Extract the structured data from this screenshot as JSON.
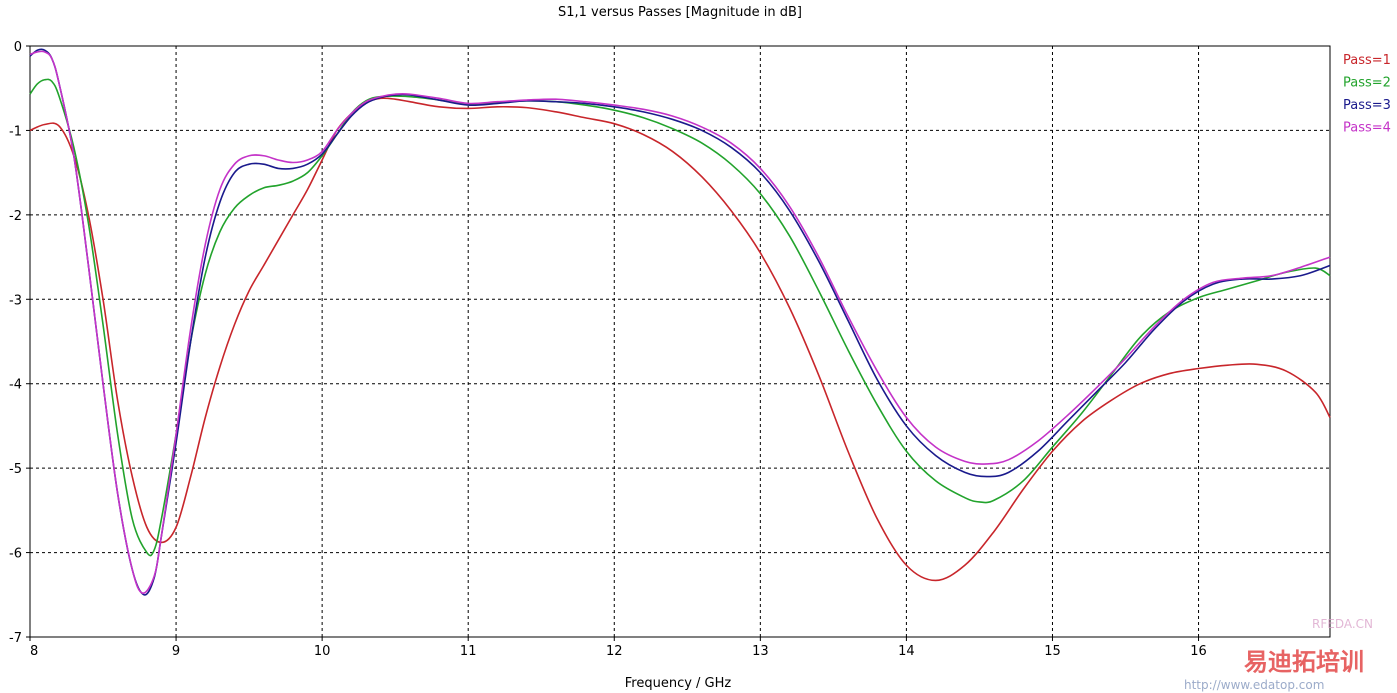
{
  "chart_data": {
    "type": "line",
    "title": "S1,1 versus Passes [Magnitude in dB]",
    "xlabel": "Frequency / GHz",
    "ylabel": "",
    "xlim": [
      8,
      16.9
    ],
    "ylim": [
      -7,
      0
    ],
    "xticks": [
      "8",
      "9",
      "10",
      "11",
      "12",
      "13",
      "14",
      "15",
      "16"
    ],
    "yticks": [
      "0",
      "-1",
      "-2",
      "-3",
      "-4",
      "-5",
      "-6",
      "-7"
    ],
    "grid": true,
    "legend": "top-right",
    "series": [
      {
        "name": "Pass=1",
        "color": "#c8262b",
        "points": [
          [
            8.0,
            -1.0
          ],
          [
            8.1,
            -0.93
          ],
          [
            8.2,
            -0.95
          ],
          [
            8.3,
            -1.3
          ],
          [
            8.4,
            -2.0
          ],
          [
            8.5,
            -3.0
          ],
          [
            8.6,
            -4.2
          ],
          [
            8.7,
            -5.1
          ],
          [
            8.8,
            -5.7
          ],
          [
            8.9,
            -5.88
          ],
          [
            9.0,
            -5.7
          ],
          [
            9.1,
            -5.1
          ],
          [
            9.2,
            -4.4
          ],
          [
            9.3,
            -3.8
          ],
          [
            9.4,
            -3.3
          ],
          [
            9.5,
            -2.9
          ],
          [
            9.6,
            -2.6
          ],
          [
            9.7,
            -2.3
          ],
          [
            9.8,
            -2.0
          ],
          [
            9.9,
            -1.7
          ],
          [
            10.0,
            -1.35
          ],
          [
            10.1,
            -1.0
          ],
          [
            10.2,
            -0.8
          ],
          [
            10.3,
            -0.67
          ],
          [
            10.4,
            -0.62
          ],
          [
            10.5,
            -0.63
          ],
          [
            10.6,
            -0.66
          ],
          [
            10.8,
            -0.72
          ],
          [
            11.0,
            -0.74
          ],
          [
            11.2,
            -0.72
          ],
          [
            11.4,
            -0.73
          ],
          [
            11.6,
            -0.78
          ],
          [
            11.8,
            -0.85
          ],
          [
            12.0,
            -0.92
          ],
          [
            12.2,
            -1.05
          ],
          [
            12.4,
            -1.25
          ],
          [
            12.6,
            -1.55
          ],
          [
            12.8,
            -1.95
          ],
          [
            13.0,
            -2.45
          ],
          [
            13.2,
            -3.1
          ],
          [
            13.4,
            -3.9
          ],
          [
            13.6,
            -4.8
          ],
          [
            13.8,
            -5.6
          ],
          [
            14.0,
            -6.15
          ],
          [
            14.2,
            -6.33
          ],
          [
            14.4,
            -6.15
          ],
          [
            14.6,
            -5.75
          ],
          [
            14.8,
            -5.25
          ],
          [
            15.0,
            -4.8
          ],
          [
            15.2,
            -4.45
          ],
          [
            15.4,
            -4.2
          ],
          [
            15.6,
            -4.0
          ],
          [
            15.8,
            -3.88
          ],
          [
            16.0,
            -3.82
          ],
          [
            16.2,
            -3.78
          ],
          [
            16.4,
            -3.77
          ],
          [
            16.6,
            -3.85
          ],
          [
            16.8,
            -4.1
          ],
          [
            16.9,
            -4.4
          ]
        ]
      },
      {
        "name": "Pass=2",
        "color": "#22a32c",
        "points": [
          [
            8.0,
            -0.57
          ],
          [
            8.05,
            -0.45
          ],
          [
            8.1,
            -0.4
          ],
          [
            8.15,
            -0.42
          ],
          [
            8.2,
            -0.6
          ],
          [
            8.3,
            -1.2
          ],
          [
            8.4,
            -2.1
          ],
          [
            8.5,
            -3.3
          ],
          [
            8.6,
            -4.6
          ],
          [
            8.7,
            -5.6
          ],
          [
            8.8,
            -6.0
          ],
          [
            8.85,
            -5.97
          ],
          [
            8.9,
            -5.6
          ],
          [
            9.0,
            -4.6
          ],
          [
            9.1,
            -3.5
          ],
          [
            9.2,
            -2.7
          ],
          [
            9.3,
            -2.2
          ],
          [
            9.4,
            -1.92
          ],
          [
            9.5,
            -1.77
          ],
          [
            9.6,
            -1.68
          ],
          [
            9.7,
            -1.65
          ],
          [
            9.8,
            -1.6
          ],
          [
            9.9,
            -1.5
          ],
          [
            10.0,
            -1.3
          ],
          [
            10.1,
            -1.05
          ],
          [
            10.2,
            -0.8
          ],
          [
            10.3,
            -0.65
          ],
          [
            10.4,
            -0.6
          ],
          [
            10.6,
            -0.6
          ],
          [
            10.8,
            -0.64
          ],
          [
            11.0,
            -0.69
          ],
          [
            11.2,
            -0.67
          ],
          [
            11.4,
            -0.65
          ],
          [
            11.6,
            -0.66
          ],
          [
            11.8,
            -0.7
          ],
          [
            12.0,
            -0.76
          ],
          [
            12.2,
            -0.85
          ],
          [
            12.4,
            -0.98
          ],
          [
            12.6,
            -1.15
          ],
          [
            12.8,
            -1.4
          ],
          [
            13.0,
            -1.75
          ],
          [
            13.2,
            -2.25
          ],
          [
            13.4,
            -2.9
          ],
          [
            13.6,
            -3.6
          ],
          [
            13.8,
            -4.25
          ],
          [
            14.0,
            -4.8
          ],
          [
            14.2,
            -5.15
          ],
          [
            14.4,
            -5.35
          ],
          [
            14.5,
            -5.4
          ],
          [
            14.6,
            -5.38
          ],
          [
            14.8,
            -5.15
          ],
          [
            15.0,
            -4.75
          ],
          [
            15.2,
            -4.35
          ],
          [
            15.4,
            -3.9
          ],
          [
            15.6,
            -3.45
          ],
          [
            15.8,
            -3.15
          ],
          [
            16.0,
            -2.98
          ],
          [
            16.2,
            -2.88
          ],
          [
            16.4,
            -2.78
          ],
          [
            16.6,
            -2.68
          ],
          [
            16.8,
            -2.63
          ],
          [
            16.9,
            -2.72
          ]
        ]
      },
      {
        "name": "Pass=3",
        "color": "#1a1a8c",
        "points": [
          [
            8.0,
            -0.12
          ],
          [
            8.05,
            -0.05
          ],
          [
            8.1,
            -0.05
          ],
          [
            8.15,
            -0.15
          ],
          [
            8.2,
            -0.45
          ],
          [
            8.3,
            -1.3
          ],
          [
            8.4,
            -2.6
          ],
          [
            8.5,
            -4.0
          ],
          [
            8.6,
            -5.3
          ],
          [
            8.7,
            -6.2
          ],
          [
            8.78,
            -6.5
          ],
          [
            8.85,
            -6.3
          ],
          [
            8.9,
            -5.8
          ],
          [
            9.0,
            -4.7
          ],
          [
            9.1,
            -3.5
          ],
          [
            9.2,
            -2.5
          ],
          [
            9.3,
            -1.85
          ],
          [
            9.4,
            -1.5
          ],
          [
            9.5,
            -1.4
          ],
          [
            9.6,
            -1.4
          ],
          [
            9.7,
            -1.45
          ],
          [
            9.8,
            -1.45
          ],
          [
            9.9,
            -1.4
          ],
          [
            10.0,
            -1.28
          ],
          [
            10.1,
            -1.05
          ],
          [
            10.2,
            -0.83
          ],
          [
            10.3,
            -0.68
          ],
          [
            10.4,
            -0.61
          ],
          [
            10.5,
            -0.58
          ],
          [
            10.6,
            -0.58
          ],
          [
            10.8,
            -0.64
          ],
          [
            11.0,
            -0.7
          ],
          [
            11.2,
            -0.68
          ],
          [
            11.4,
            -0.65
          ],
          [
            11.6,
            -0.66
          ],
          [
            11.8,
            -0.68
          ],
          [
            12.0,
            -0.72
          ],
          [
            12.2,
            -0.78
          ],
          [
            12.4,
            -0.87
          ],
          [
            12.6,
            -1.0
          ],
          [
            12.8,
            -1.2
          ],
          [
            13.0,
            -1.5
          ],
          [
            13.2,
            -1.95
          ],
          [
            13.4,
            -2.55
          ],
          [
            13.6,
            -3.25
          ],
          [
            13.8,
            -3.95
          ],
          [
            14.0,
            -4.5
          ],
          [
            14.2,
            -4.85
          ],
          [
            14.4,
            -5.05
          ],
          [
            14.55,
            -5.1
          ],
          [
            14.7,
            -5.05
          ],
          [
            14.9,
            -4.8
          ],
          [
            15.1,
            -4.45
          ],
          [
            15.3,
            -4.1
          ],
          [
            15.5,
            -3.75
          ],
          [
            15.7,
            -3.35
          ],
          [
            15.9,
            -3.02
          ],
          [
            16.1,
            -2.82
          ],
          [
            16.3,
            -2.76
          ],
          [
            16.5,
            -2.76
          ],
          [
            16.7,
            -2.72
          ],
          [
            16.9,
            -2.6
          ]
        ]
      },
      {
        "name": "Pass=4",
        "color": "#c433c8",
        "points": [
          [
            8.0,
            -0.1
          ],
          [
            8.05,
            -0.07
          ],
          [
            8.1,
            -0.07
          ],
          [
            8.15,
            -0.15
          ],
          [
            8.2,
            -0.45
          ],
          [
            8.3,
            -1.3
          ],
          [
            8.4,
            -2.6
          ],
          [
            8.5,
            -4.0
          ],
          [
            8.6,
            -5.3
          ],
          [
            8.7,
            -6.2
          ],
          [
            8.77,
            -6.48
          ],
          [
            8.85,
            -6.28
          ],
          [
            8.9,
            -5.8
          ],
          [
            9.0,
            -4.6
          ],
          [
            9.1,
            -3.35
          ],
          [
            9.2,
            -2.35
          ],
          [
            9.3,
            -1.7
          ],
          [
            9.4,
            -1.4
          ],
          [
            9.5,
            -1.3
          ],
          [
            9.6,
            -1.3
          ],
          [
            9.7,
            -1.35
          ],
          [
            9.8,
            -1.38
          ],
          [
            9.9,
            -1.35
          ],
          [
            10.0,
            -1.25
          ],
          [
            10.1,
            -1.0
          ],
          [
            10.2,
            -0.8
          ],
          [
            10.3,
            -0.66
          ],
          [
            10.4,
            -0.6
          ],
          [
            10.5,
            -0.57
          ],
          [
            10.6,
            -0.57
          ],
          [
            10.8,
            -0.62
          ],
          [
            11.0,
            -0.68
          ],
          [
            11.2,
            -0.66
          ],
          [
            11.4,
            -0.64
          ],
          [
            11.6,
            -0.63
          ],
          [
            11.8,
            -0.66
          ],
          [
            12.0,
            -0.7
          ],
          [
            12.2,
            -0.75
          ],
          [
            12.4,
            -0.83
          ],
          [
            12.6,
            -0.96
          ],
          [
            12.8,
            -1.15
          ],
          [
            13.0,
            -1.45
          ],
          [
            13.2,
            -1.9
          ],
          [
            13.4,
            -2.5
          ],
          [
            13.6,
            -3.2
          ],
          [
            13.8,
            -3.85
          ],
          [
            14.0,
            -4.4
          ],
          [
            14.2,
            -4.75
          ],
          [
            14.4,
            -4.92
          ],
          [
            14.55,
            -4.95
          ],
          [
            14.7,
            -4.9
          ],
          [
            14.9,
            -4.68
          ],
          [
            15.1,
            -4.38
          ],
          [
            15.3,
            -4.05
          ],
          [
            15.5,
            -3.7
          ],
          [
            15.7,
            -3.32
          ],
          [
            15.9,
            -3.0
          ],
          [
            16.1,
            -2.8
          ],
          [
            16.3,
            -2.75
          ],
          [
            16.5,
            -2.72
          ],
          [
            16.7,
            -2.62
          ],
          [
            16.9,
            -2.5
          ]
        ]
      }
    ]
  },
  "watermarks": {
    "site_tag": "RFEDA.CN",
    "brand_cn": "易迪拓培训",
    "url": "http://www.edatop.com"
  }
}
